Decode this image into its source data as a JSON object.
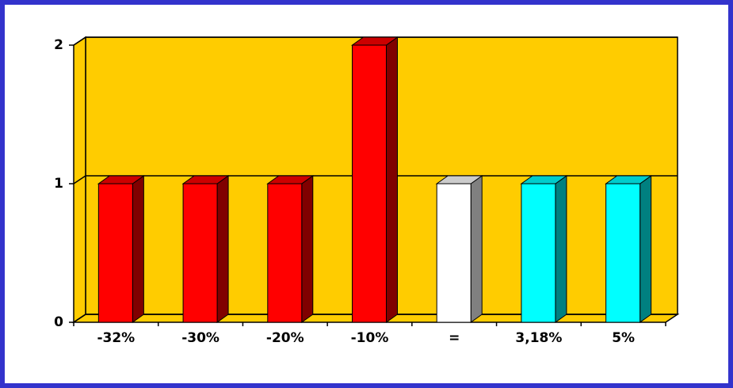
{
  "chart_data": {
    "type": "bar3d",
    "categories": [
      "-32%",
      "-30%",
      "-20%",
      "-10%",
      "=",
      "3,18%",
      "5%"
    ],
    "values": [
      1,
      1,
      1,
      2,
      1,
      1,
      1
    ],
    "colors": [
      "#ff0000",
      "#ff0000",
      "#ff0000",
      "#ff0000",
      "#ffffff",
      "#00ffff",
      "#00ffff"
    ],
    "ylim": [
      0,
      2
    ],
    "yticks": [
      0,
      1,
      2
    ],
    "grid": true
  }
}
